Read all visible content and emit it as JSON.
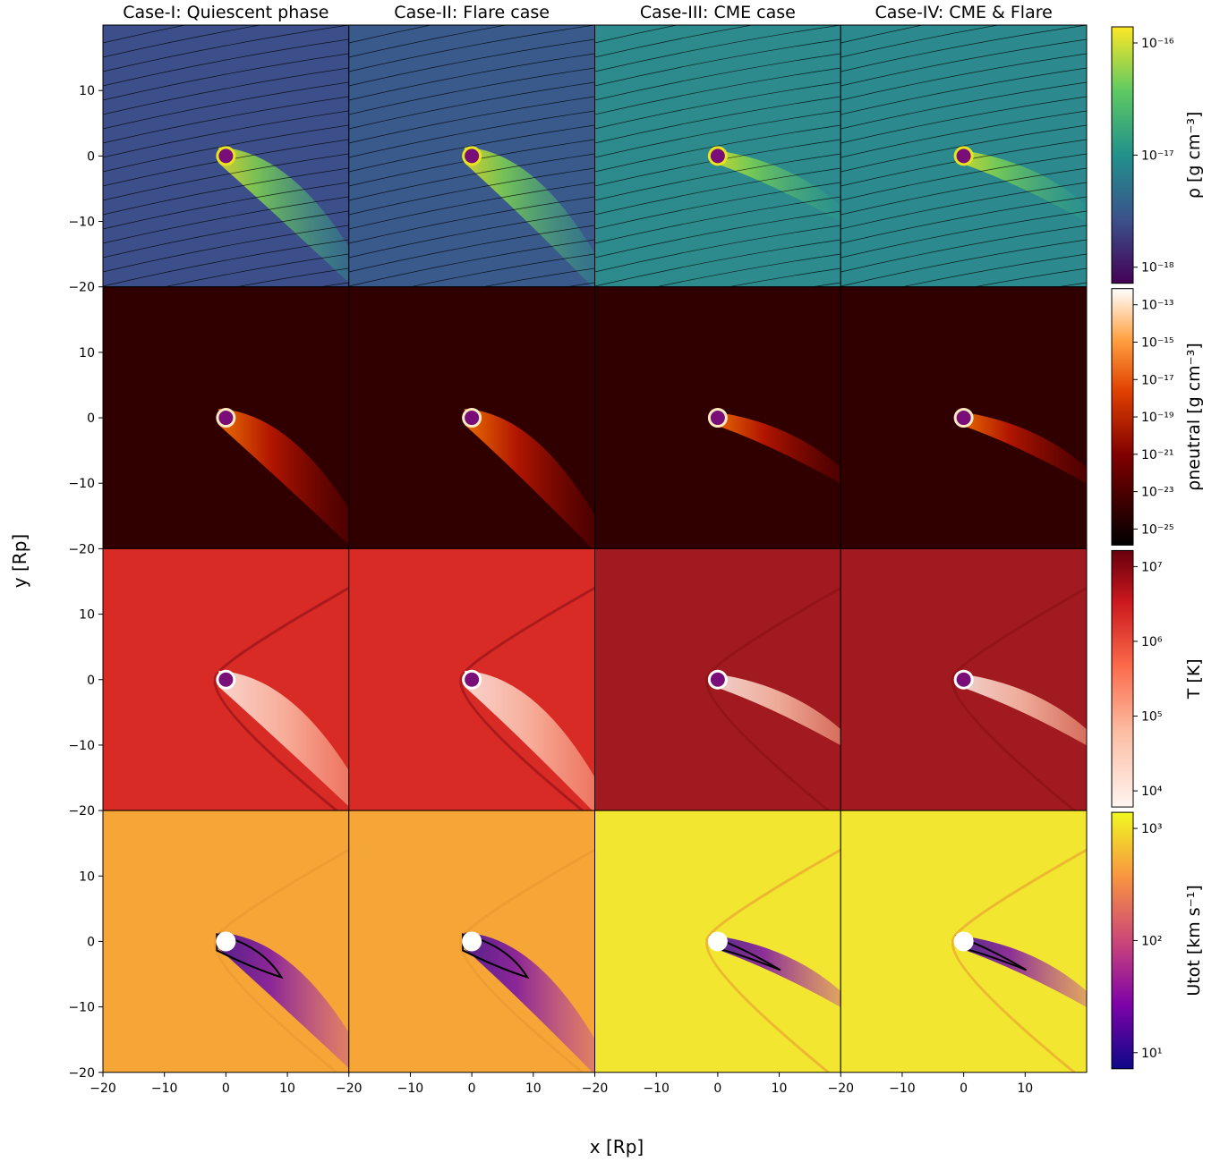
{
  "chart_data": {
    "type": "heatmap",
    "columns": [
      {
        "title": "Case-I: Quiescent phase"
      },
      {
        "title": "Case-II: Flare case"
      },
      {
        "title": "Case-III: CME case"
      },
      {
        "title": "Case-IV: CME & Flare"
      }
    ],
    "rows": [
      {
        "colorbar_label": "ρ [g cm⁻³]",
        "scale": "log",
        "colormap": "viridis",
        "ticks": [
          "10⁻¹⁶",
          "10⁻¹⁷",
          "10⁻¹⁸"
        ]
      },
      {
        "colorbar_label": "ρneutral [g cm⁻³]",
        "scale": "log",
        "colormap": "gist_heat",
        "ticks": [
          "10⁻¹³",
          "10⁻¹⁵",
          "10⁻¹⁷",
          "10⁻¹⁹",
          "10⁻²¹",
          "10⁻²³",
          "10⁻²⁵"
        ]
      },
      {
        "colorbar_label": "T [K]",
        "scale": "log",
        "colormap": "Reds",
        "ticks": [
          "10⁷",
          "10⁶",
          "10⁵",
          "10⁴"
        ]
      },
      {
        "colorbar_label": "Utot [km s⁻¹]",
        "scale": "log",
        "colormap": "plasma",
        "ticks": [
          "10³",
          "10²",
          "10¹"
        ]
      }
    ],
    "xlabel": "x [Rp]",
    "ylabel": "y [Rp]",
    "xlim": [
      -20,
      20
    ],
    "ylim": [
      -20,
      20
    ],
    "x_ticks": [
      "−20",
      "−10",
      "0",
      "10"
    ],
    "y_ticks": [
      "10",
      "0",
      "−10",
      "−20"
    ],
    "planet_position": [
      0,
      0
    ],
    "colors": {
      "density_background": [
        "#3c4f8a",
        "#3a5a8c",
        "#2d8a8d",
        "#2c8a8e"
      ],
      "tail_high": "#e8e51f",
      "neutral_background": "#300000",
      "temperature_background": [
        "#d92b26",
        "#d92b26",
        "#a11a1f",
        "#a11a1f"
      ],
      "velocity_background": [
        "#f6a537",
        "#f6a537",
        "#f3e630",
        "#f3e630"
      ],
      "tail_low_velocity": "#2a0a8f",
      "planet": "#7a0e79"
    }
  }
}
